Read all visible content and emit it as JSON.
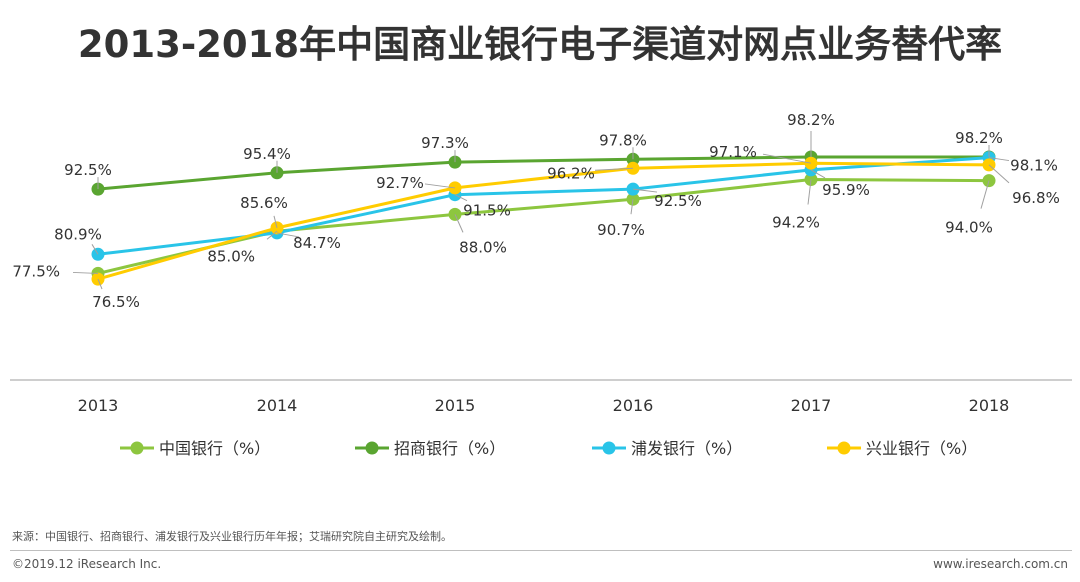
{
  "title": "2013-2018年中国商业银行电子渠道对网点业务替代率",
  "chart_data": {
    "type": "line",
    "title": "2013-2018年中国商业银行电子渠道对网点业务替代率",
    "x": [
      "2013",
      "2014",
      "2015",
      "2016",
      "2017",
      "2018"
    ],
    "ylim": [
      60,
      100
    ],
    "grid": false,
    "legend_position": "bottom",
    "series": [
      {
        "name": "中国银行（%）",
        "color": "#8dc63f",
        "values": [
          77.5,
          85.0,
          88.0,
          90.7,
          94.2,
          94.0
        ]
      },
      {
        "name": "招商银行（%）",
        "color": "#5aa531",
        "values": [
          92.5,
          95.4,
          97.3,
          97.8,
          98.2,
          98.2
        ]
      },
      {
        "name": "浦发银行（%）",
        "color": "#29c4e8",
        "values": [
          80.9,
          84.7,
          91.5,
          92.5,
          95.9,
          98.1
        ]
      },
      {
        "name": "兴业银行（%）",
        "color": "#ffcc00",
        "values": [
          76.5,
          85.6,
          92.7,
          96.2,
          97.1,
          96.8
        ]
      }
    ]
  },
  "footer": {
    "source": "来源：中国银行、招商银行、浦发银行及兴业银行历年年报；艾瑞研究院自主研究及绘制。",
    "copyright": "©2019.12 iResearch Inc.",
    "site": "www.iresearch.com.cn"
  }
}
